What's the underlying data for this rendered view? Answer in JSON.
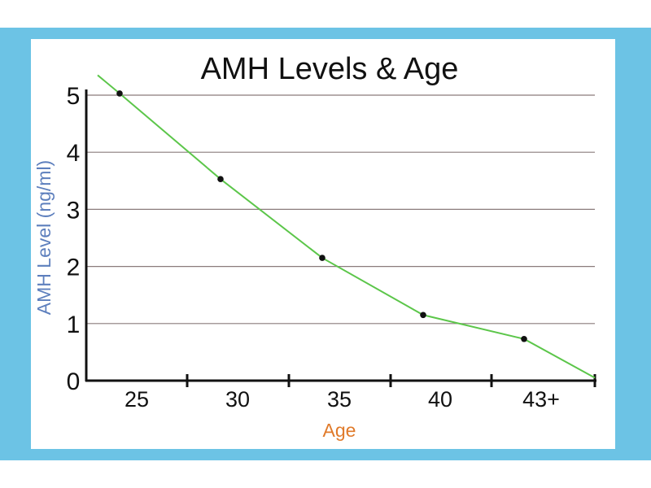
{
  "colors": {
    "frame": "#6cc3e5",
    "panel": "#ffffff",
    "gridline": "#8a7b7b",
    "axis": "#111111",
    "series_line": "#5cc64a",
    "marker": "#111111",
    "ylabel": "#5d7fbd",
    "xlabel": "#e07a2a",
    "highlight_tick": "#e0252a"
  },
  "chart_data": {
    "type": "line",
    "title": "AMH Levels & Age",
    "xlabel": "Age",
    "ylabel": "AMH Level (ng/ml)",
    "categories": [
      "25",
      "30",
      "35",
      "40",
      "43+"
    ],
    "highlighted_category": "43+",
    "ylim": [
      0,
      5
    ],
    "yticks": [
      "0",
      "1",
      "2",
      "3",
      "4",
      "5"
    ],
    "grid": true,
    "series": [
      {
        "values": [
          5.03,
          3.53,
          2.15,
          1.15,
          0.73
        ],
        "line_start": 5.35,
        "line_end": 0.05
      }
    ]
  }
}
